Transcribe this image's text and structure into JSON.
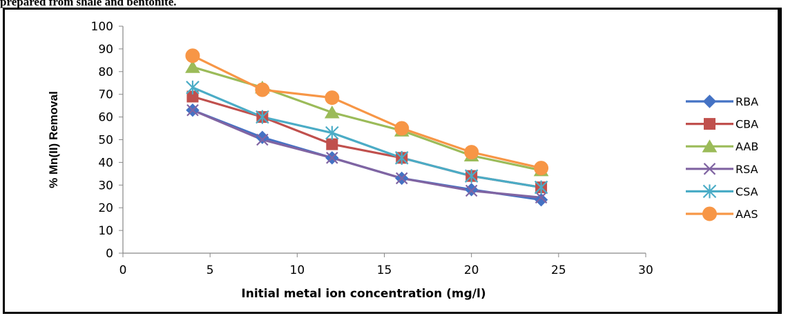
{
  "caption": "prepared from shale and bentonite.",
  "chart_data": {
    "type": "line",
    "title": "",
    "xlabel": "Initial metal ion concentration (mg/l)",
    "ylabel": "% Mn(II) Removal",
    "xlim": [
      0,
      30
    ],
    "ylim": [
      0,
      100
    ],
    "xticks": [
      0,
      5,
      10,
      15,
      20,
      25,
      30
    ],
    "yticks": [
      0,
      10,
      20,
      30,
      40,
      50,
      60,
      70,
      80,
      90,
      100
    ],
    "grid": false,
    "legend_position": "right",
    "x": [
      4,
      8,
      12,
      16,
      20,
      24
    ],
    "series": [
      {
        "name": "RBA",
        "values": [
          63,
          51,
          42,
          33,
          28,
          23.5
        ],
        "color": "#4472C4",
        "marker": "diamond"
      },
      {
        "name": "CBA",
        "values": [
          69,
          60,
          48,
          42,
          34,
          29
        ],
        "color": "#C0504D",
        "marker": "square"
      },
      {
        "name": "AAB",
        "values": [
          82,
          73,
          62,
          54,
          43,
          36.5
        ],
        "color": "#9BBB59",
        "marker": "triangle"
      },
      {
        "name": "RSA",
        "values": [
          63,
          50,
          42,
          33,
          27.5,
          24.5
        ],
        "color": "#8064A2",
        "marker": "x"
      },
      {
        "name": "CSA",
        "values": [
          73,
          60,
          53,
          42,
          34,
          29
        ],
        "color": "#4BACC6",
        "marker": "star"
      },
      {
        "name": "AAS",
        "values": [
          87,
          72,
          68.5,
          55,
          44.5,
          37.5
        ],
        "color": "#F79646",
        "marker": "circle"
      }
    ]
  }
}
